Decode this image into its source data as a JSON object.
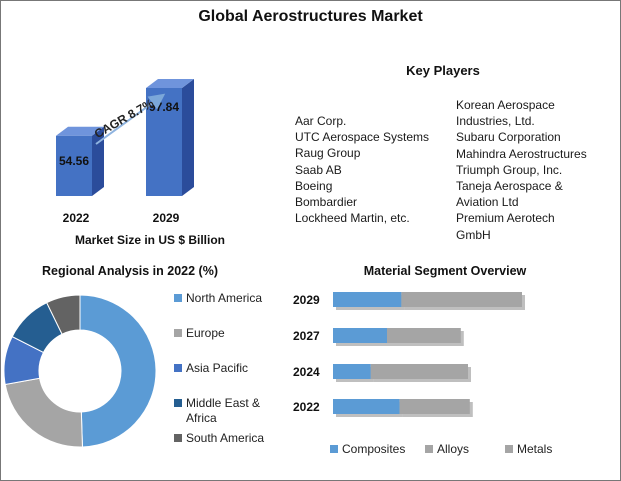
{
  "title": "Global Aerostructures Market",
  "market_size": {
    "caption": "Market Size in US $ Billion",
    "cagr_label": "CAGR 8.7%",
    "bars": [
      {
        "year": "2022",
        "value": 54.56,
        "label": "54.56"
      },
      {
        "year": "2029",
        "value": 97.84,
        "label": "97.84"
      }
    ]
  },
  "key_players": {
    "title": "Key Players",
    "left": [
      "Aar Corp.",
      "UTC Aerospace Systems",
      "Raug Group",
      "Saab AB",
      "Boeing",
      "Bombardier",
      "Lockheed Martin, etc."
    ],
    "right": [
      "Korean Aerospace",
      "Industries, Ltd.",
      "Subaru Corporation",
      "Mahindra Aerostructures",
      "Triumph Group, Inc.",
      "Taneja Aerospace &",
      "Aviation Ltd",
      "Premium Aerotech",
      "GmbH"
    ]
  },
  "chart_data": [
    {
      "type": "bar",
      "title": "",
      "xlabel": "Market Size in US $ Billion",
      "categories": [
        "2022",
        "2029"
      ],
      "values": [
        54.56,
        97.84
      ],
      "annotations": [
        "CAGR 8.7%"
      ]
    },
    {
      "type": "pie",
      "title": "Regional Analysis in 2022 (%)",
      "labels": [
        "North America",
        "Europe",
        "Asia Pacific",
        "Middle East & Africa",
        "South America"
      ],
      "legend_lines": [
        [
          "North America"
        ],
        [
          "Europe"
        ],
        [
          "Asia Pacific"
        ],
        [
          "Middle East &",
          "Africa"
        ],
        [
          "South America"
        ]
      ],
      "values": [
        48,
        22,
        10,
        10,
        7
      ],
      "colors": [
        "#5b9bd5",
        "#a5a5a5",
        "#4472c4",
        "#255e91",
        "#636363"
      ],
      "legend": "right"
    },
    {
      "type": "bar",
      "orientation": "horizontal",
      "stacked": true,
      "title": "Material Segment Overview",
      "categories": [
        "2029",
        "2027",
        "2024",
        "2022"
      ],
      "series": [
        {
          "name": "Composites",
          "values": [
            38,
            30,
            21,
            37
          ],
          "color": "#5b9bd5"
        },
        {
          "name": "Alloys",
          "values": [
            67,
            41,
            54,
            39
          ],
          "color": "#a5a5a5"
        }
      ],
      "legend_entries": [
        {
          "name": "Composites",
          "color": "#5b9bd5"
        },
        {
          "name": "Alloys",
          "color": "#a5a5a5"
        },
        {
          "name": "Metals",
          "color": "#a5a5a5"
        }
      ],
      "legend": "bottom"
    }
  ]
}
